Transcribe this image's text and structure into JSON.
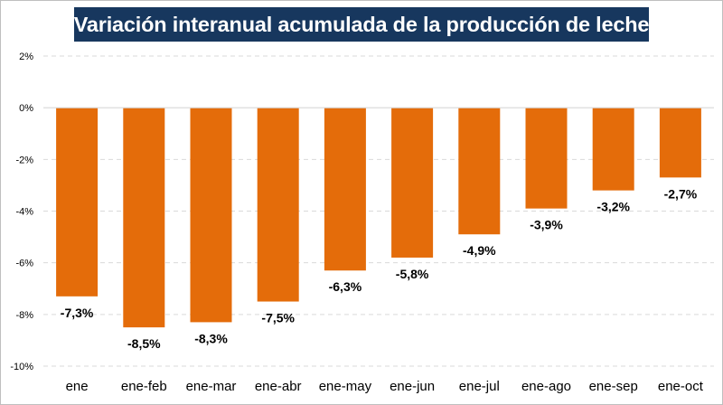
{
  "chart_data": {
    "type": "bar",
    "title": "Variación interanual acumulada de la producción de leche",
    "categories": [
      "ene",
      "ene-feb",
      "ene-mar",
      "ene-abr",
      "ene-may",
      "ene-jun",
      "ene-jul",
      "ene-ago",
      "ene-sep",
      "ene-oct"
    ],
    "values": [
      -7.3,
      -8.5,
      -8.3,
      -7.5,
      -6.3,
      -5.8,
      -4.9,
      -3.9,
      -3.2,
      -2.7
    ],
    "data_labels": [
      "-7,3%",
      "-8,5%",
      "-8,3%",
      "-7,5%",
      "-6,3%",
      "-5,8%",
      "-4,9%",
      "-3,9%",
      "-3,2%",
      "-2,7%"
    ],
    "ylim": [
      -10,
      2
    ],
    "yticks": [
      2,
      0,
      -2,
      -4,
      -6,
      -8,
      -10
    ],
    "ytick_labels": [
      "2%",
      "0%",
      "-2%",
      "-4%",
      "-6%",
      "-8%",
      "-10%"
    ],
    "xlabel": "",
    "ylabel": "",
    "grid": true,
    "legend": "none",
    "colors": {
      "bar": "#e46c0a",
      "title_background": "#17375e",
      "title_text": "#ffffff",
      "gridline": "#d9d9d9"
    }
  }
}
